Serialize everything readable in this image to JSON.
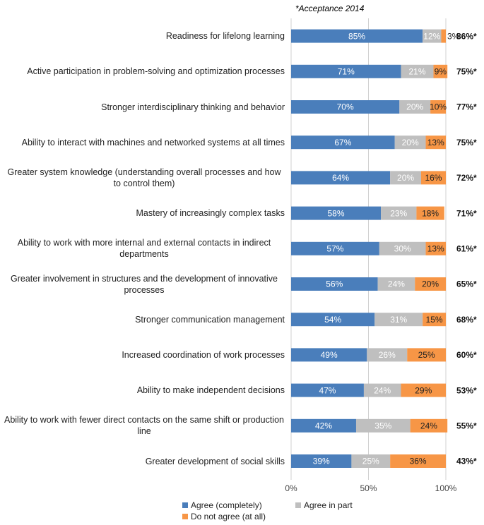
{
  "chart_data": {
    "type": "bar",
    "orientation": "horizontal",
    "stacked": true,
    "annotation": "*Acceptance 2014",
    "categories": [
      "Readiness for lifelong learning",
      "Active participation in problem-solving and optimization processes",
      "Stronger interdisciplinary thinking and behavior",
      "Ability to interact with machines and networked systems at all times",
      "Greater system knowledge (understanding overall processes and how to control them)",
      "Mastery of increasingly complex tasks",
      "Ability to work with more internal and external contacts in indirect departments",
      "Greater involvement in structures and the development of innovative processes",
      "Stronger communication management",
      "Increased coordination of work processes",
      "Ability to make independent decisions",
      "Ability to work with fewer direct contacts on the same shift or production line",
      "Greater development of social skills"
    ],
    "series": [
      {
        "name": "Agree (completely)",
        "color": "#4a7ebb",
        "values": [
          85,
          71,
          70,
          67,
          64,
          58,
          57,
          56,
          54,
          49,
          47,
          42,
          39
        ],
        "value_labels": [
          "85%",
          "71%",
          "70%",
          "67%",
          "64%",
          "58%",
          "57%",
          "56%",
          "54%",
          "49%",
          "47%",
          "42%",
          "39%"
        ]
      },
      {
        "name": "Agree in part",
        "color": "#bfbfbf",
        "values": [
          12,
          21,
          20,
          20,
          20,
          23,
          30,
          24,
          31,
          26,
          24,
          35,
          25
        ],
        "value_labels": [
          "12%",
          "21%",
          "20%",
          "20%",
          "20%",
          "23%",
          "30%",
          "24%",
          "31%",
          "26%",
          "24%",
          "35%",
          "25%"
        ]
      },
      {
        "name": "Do not agree (at all)",
        "color": "#f79646",
        "values": [
          3,
          9,
          10,
          13,
          16,
          18,
          13,
          20,
          15,
          25,
          29,
          24,
          36
        ],
        "value_labels": [
          "3%",
          "9%",
          "10%",
          "13%",
          "16%",
          "18%",
          "13%",
          "20%",
          "15%",
          "25%",
          "29%",
          "24%",
          "36%"
        ]
      }
    ],
    "acceptance": {
      "values": [
        86,
        75,
        77,
        75,
        72,
        71,
        61,
        65,
        68,
        60,
        53,
        55,
        43
      ],
      "value_labels": [
        "86%*",
        "75%*",
        "77%*",
        "75%*",
        "72%*",
        "71%*",
        "61%*",
        "65%*",
        "68%*",
        "60%*",
        "53%*",
        "55%*",
        "43%*"
      ]
    },
    "xlim": [
      0,
      100
    ],
    "xticks": [
      {
        "value": 0,
        "label": "0%"
      },
      {
        "value": 50,
        "label": "50%"
      },
      {
        "value": 100,
        "label": "100%"
      }
    ],
    "grid": true
  }
}
